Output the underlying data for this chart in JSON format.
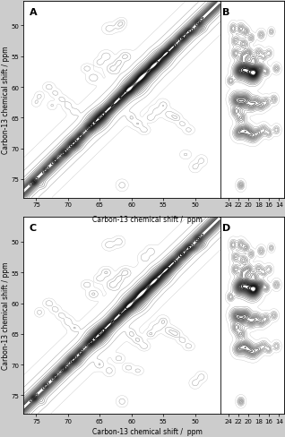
{
  "ylabel": "Carbon-13 chemical shift / ppm",
  "xlabel": "Carbon-13 chemical shift /  ppm",
  "yticks": [
    50,
    55,
    60,
    65,
    70,
    75
  ],
  "xticks_main": [
    75,
    70,
    65,
    60,
    55,
    50
  ],
  "xticks_side": [
    24,
    22,
    20,
    18,
    16,
    14
  ],
  "ylim": [
    78,
    46
  ],
  "xlim_main": [
    77,
    46
  ],
  "xlim_side": [
    25.5,
    13
  ],
  "n_levels": 18,
  "figure_bg": "#d8d8d8",
  "panel_bg": "#ffffff",
  "peaks_A": [
    [
      75.3,
      75.5,
      0.3,
      0.3,
      8.0
    ],
    [
      73.5,
      73.5,
      0.25,
      0.25,
      5.0
    ],
    [
      72.0,
      72.0,
      0.3,
      0.3,
      6.0
    ],
    [
      70.5,
      70.7,
      0.5,
      0.4,
      7.0
    ],
    [
      69.0,
      69.3,
      0.7,
      0.6,
      7.5
    ],
    [
      68.0,
      68.0,
      0.4,
      0.4,
      5.0
    ],
    [
      66.5,
      66.5,
      0.5,
      0.4,
      6.0
    ],
    [
      65.5,
      65.5,
      1.0,
      0.9,
      8.0
    ],
    [
      64.5,
      64.5,
      0.7,
      0.7,
      7.0
    ],
    [
      63.5,
      63.5,
      0.5,
      0.5,
      6.5
    ],
    [
      62.5,
      62.5,
      0.6,
      0.6,
      7.0
    ],
    [
      61.5,
      61.5,
      0.7,
      0.6,
      7.5
    ],
    [
      60.5,
      60.5,
      0.6,
      0.5,
      7.0
    ],
    [
      59.5,
      59.8,
      1.2,
      1.0,
      9.0
    ],
    [
      58.5,
      58.5,
      0.8,
      0.7,
      7.5
    ],
    [
      57.5,
      57.5,
      1.0,
      0.9,
      8.0
    ],
    [
      56.5,
      56.5,
      0.7,
      0.6,
      7.0
    ],
    [
      55.5,
      55.5,
      1.0,
      0.9,
      8.0
    ],
    [
      54.5,
      54.5,
      0.6,
      0.5,
      6.5
    ],
    [
      53.5,
      53.5,
      0.7,
      0.6,
      7.0
    ],
    [
      52.0,
      52.0,
      0.6,
      0.5,
      6.5
    ],
    [
      51.0,
      51.0,
      0.5,
      0.4,
      5.5
    ],
    [
      49.5,
      49.5,
      0.4,
      0.4,
      5.0
    ],
    [
      67.0,
      57.0,
      0.5,
      0.4,
      4.0
    ],
    [
      66.0,
      58.5,
      0.6,
      0.5,
      4.5
    ],
    [
      65.0,
      56.0,
      0.5,
      0.4,
      4.0
    ],
    [
      64.0,
      55.0,
      0.6,
      0.5,
      4.5
    ],
    [
      63.0,
      57.0,
      0.7,
      0.6,
      5.0
    ],
    [
      62.0,
      56.0,
      0.5,
      0.5,
      4.5
    ],
    [
      61.0,
      55.0,
      0.6,
      0.5,
      5.0
    ],
    [
      60.0,
      65.0,
      0.5,
      0.5,
      4.0
    ],
    [
      59.0,
      66.0,
      0.6,
      0.5,
      4.5
    ],
    [
      58.0,
      67.0,
      0.5,
      0.4,
      4.0
    ],
    [
      57.0,
      65.0,
      0.5,
      0.4,
      4.5
    ],
    [
      56.0,
      64.0,
      0.6,
      0.5,
      4.0
    ],
    [
      55.0,
      63.0,
      0.5,
      0.5,
      4.5
    ],
    [
      54.0,
      64.5,
      0.6,
      0.5,
      4.0
    ],
    [
      53.0,
      65.0,
      0.5,
      0.4,
      4.5
    ],
    [
      52.0,
      66.0,
      0.5,
      0.4,
      3.5
    ],
    [
      51.0,
      67.0,
      0.5,
      0.4,
      3.5
    ],
    [
      74.5,
      61.5,
      0.4,
      0.4,
      3.5
    ],
    [
      73.0,
      60.0,
      0.5,
      0.4,
      4.0
    ],
    [
      72.0,
      61.0,
      0.5,
      0.4,
      3.5
    ],
    [
      71.0,
      62.0,
      0.5,
      0.4,
      3.5
    ],
    [
      70.0,
      63.0,
      0.5,
      0.5,
      4.0
    ],
    [
      69.0,
      64.0,
      0.5,
      0.4,
      3.5
    ],
    [
      50.0,
      51.0,
      0.5,
      0.4,
      4.0
    ],
    [
      49.0,
      50.5,
      0.5,
      0.4,
      4.0
    ],
    [
      75.0,
      62.5,
      0.4,
      0.4,
      3.0
    ],
    [
      74.0,
      76.0,
      0.35,
      0.35,
      3.0
    ],
    [
      72.5,
      63.0,
      0.4,
      0.4,
      3.0
    ],
    [
      63.5,
      50.5,
      0.6,
      0.5,
      4.0
    ],
    [
      62.0,
      50.0,
      0.5,
      0.5,
      4.0
    ],
    [
      61.5,
      49.5,
      0.4,
      0.4,
      3.5
    ],
    [
      49.0,
      72.0,
      0.5,
      0.5,
      3.5
    ],
    [
      50.0,
      73.0,
      0.5,
      0.5,
      3.5
    ],
    [
      51.5,
      71.0,
      0.5,
      0.4,
      3.0
    ],
    [
      61.5,
      76.0,
      0.5,
      0.5,
      4.0
    ]
  ],
  "peaks_B": [
    [
      23.0,
      50.5,
      0.4,
      0.5,
      5.0
    ],
    [
      21.5,
      50.5,
      0.5,
      0.5,
      5.5
    ],
    [
      20.5,
      51.0,
      0.4,
      0.4,
      5.0
    ],
    [
      22.5,
      52.5,
      0.5,
      0.5,
      5.0
    ],
    [
      21.0,
      53.0,
      0.6,
      0.5,
      5.5
    ],
    [
      19.5,
      52.0,
      0.4,
      0.4,
      4.5
    ],
    [
      17.5,
      51.5,
      0.4,
      0.4,
      4.5
    ],
    [
      15.5,
      51.0,
      0.3,
      0.3,
      4.0
    ],
    [
      22.5,
      54.5,
      0.5,
      0.5,
      5.5
    ],
    [
      21.0,
      55.0,
      0.6,
      0.6,
      6.0
    ],
    [
      20.0,
      54.5,
      0.5,
      0.5,
      5.5
    ],
    [
      19.0,
      55.5,
      0.5,
      0.5,
      5.0
    ],
    [
      18.0,
      54.5,
      0.5,
      0.5,
      5.0
    ],
    [
      17.0,
      55.0,
      0.4,
      0.4,
      4.5
    ],
    [
      16.0,
      54.5,
      0.4,
      0.4,
      4.0
    ],
    [
      22.0,
      57.5,
      0.7,
      0.8,
      7.5
    ],
    [
      21.0,
      57.0,
      0.8,
      0.9,
      8.0
    ],
    [
      20.0,
      57.5,
      0.9,
      1.0,
      8.5
    ],
    [
      19.0,
      58.0,
      0.8,
      0.9,
      8.0
    ],
    [
      18.5,
      57.5,
      0.7,
      0.8,
      7.5
    ],
    [
      17.5,
      57.0,
      0.5,
      0.5,
      5.5
    ],
    [
      16.5,
      57.5,
      0.4,
      0.4,
      5.0
    ],
    [
      23.5,
      59.0,
      0.4,
      0.4,
      5.0
    ],
    [
      22.5,
      62.0,
      0.7,
      0.7,
      6.5
    ],
    [
      21.5,
      62.5,
      0.8,
      0.8,
      7.0
    ],
    [
      20.5,
      62.0,
      0.7,
      0.7,
      6.5
    ],
    [
      19.5,
      63.0,
      0.6,
      0.6,
      6.0
    ],
    [
      18.5,
      62.5,
      0.6,
      0.6,
      6.0
    ],
    [
      17.5,
      63.0,
      0.5,
      0.5,
      5.5
    ],
    [
      16.5,
      62.5,
      0.5,
      0.5,
      5.0
    ],
    [
      22.5,
      64.0,
      0.5,
      0.5,
      5.5
    ],
    [
      21.5,
      65.0,
      0.6,
      0.6,
      6.0
    ],
    [
      22.0,
      67.5,
      0.6,
      0.6,
      6.0
    ],
    [
      21.0,
      67.0,
      0.7,
      0.7,
      6.5
    ],
    [
      20.0,
      67.5,
      0.7,
      0.7,
      6.5
    ],
    [
      19.0,
      68.0,
      0.6,
      0.6,
      6.0
    ],
    [
      18.0,
      67.5,
      0.5,
      0.5,
      5.5
    ],
    [
      17.0,
      67.0,
      0.5,
      0.5,
      5.0
    ],
    [
      16.0,
      67.5,
      0.4,
      0.4,
      4.5
    ],
    [
      21.5,
      76.0,
      0.4,
      0.4,
      5.5
    ],
    [
      14.5,
      57.0,
      0.4,
      0.4,
      4.5
    ],
    [
      15.0,
      62.0,
      0.4,
      0.4,
      4.5
    ],
    [
      14.5,
      67.0,
      0.4,
      0.4,
      4.0
    ]
  ],
  "peaks_C": [
    [
      75.3,
      75.5,
      0.3,
      0.3,
      8.0
    ],
    [
      73.5,
      73.5,
      0.25,
      0.25,
      5.0
    ],
    [
      72.0,
      72.0,
      0.3,
      0.3,
      6.0
    ],
    [
      70.5,
      70.7,
      0.5,
      0.4,
      7.0
    ],
    [
      69.0,
      69.3,
      0.7,
      0.6,
      7.5
    ],
    [
      68.0,
      68.0,
      0.4,
      0.4,
      5.0
    ],
    [
      66.5,
      66.5,
      0.5,
      0.4,
      6.0
    ],
    [
      65.5,
      65.5,
      1.0,
      0.9,
      8.0
    ],
    [
      64.5,
      64.5,
      0.7,
      0.7,
      7.0
    ],
    [
      63.5,
      63.5,
      0.5,
      0.5,
      6.5
    ],
    [
      62.5,
      62.5,
      0.6,
      0.6,
      7.0
    ],
    [
      61.5,
      61.5,
      0.7,
      0.6,
      7.5
    ],
    [
      60.5,
      60.5,
      0.6,
      0.5,
      7.0
    ],
    [
      59.5,
      59.8,
      1.2,
      1.0,
      9.0
    ],
    [
      58.5,
      58.5,
      0.8,
      0.7,
      7.5
    ],
    [
      57.5,
      57.5,
      1.0,
      0.9,
      8.0
    ],
    [
      56.5,
      56.5,
      0.7,
      0.6,
      7.0
    ],
    [
      55.5,
      55.5,
      1.0,
      0.9,
      8.0
    ],
    [
      54.5,
      54.5,
      0.6,
      0.5,
      6.5
    ],
    [
      53.5,
      53.5,
      0.7,
      0.6,
      7.0
    ],
    [
      52.0,
      52.0,
      0.6,
      0.5,
      6.5
    ],
    [
      51.0,
      51.0,
      0.5,
      0.4,
      5.5
    ],
    [
      49.5,
      49.5,
      0.4,
      0.4,
      5.0
    ],
    [
      67.0,
      57.0,
      0.5,
      0.4,
      4.5
    ],
    [
      66.0,
      58.5,
      0.6,
      0.5,
      5.0
    ],
    [
      65.0,
      56.0,
      0.5,
      0.4,
      4.5
    ],
    [
      64.0,
      55.0,
      0.6,
      0.5,
      5.0
    ],
    [
      63.0,
      57.0,
      0.7,
      0.6,
      5.5
    ],
    [
      62.0,
      56.0,
      0.5,
      0.5,
      5.0
    ],
    [
      61.0,
      55.0,
      0.6,
      0.5,
      5.5
    ],
    [
      60.0,
      65.0,
      0.5,
      0.5,
      4.5
    ],
    [
      59.0,
      66.0,
      0.6,
      0.5,
      5.0
    ],
    [
      58.0,
      67.0,
      0.5,
      0.4,
      4.5
    ],
    [
      57.0,
      65.0,
      0.5,
      0.4,
      5.0
    ],
    [
      56.0,
      64.0,
      0.6,
      0.5,
      4.5
    ],
    [
      55.0,
      63.0,
      0.5,
      0.5,
      5.0
    ],
    [
      54.0,
      64.5,
      0.6,
      0.5,
      4.5
    ],
    [
      53.0,
      65.0,
      0.5,
      0.4,
      5.0
    ],
    [
      52.0,
      66.0,
      0.5,
      0.4,
      4.0
    ],
    [
      51.0,
      67.0,
      0.5,
      0.4,
      4.0
    ],
    [
      74.5,
      61.5,
      0.4,
      0.4,
      4.0
    ],
    [
      73.0,
      60.0,
      0.5,
      0.4,
      4.5
    ],
    [
      72.0,
      61.0,
      0.5,
      0.4,
      4.0
    ],
    [
      71.0,
      62.0,
      0.5,
      0.4,
      4.0
    ],
    [
      70.0,
      63.0,
      0.5,
      0.5,
      4.5
    ],
    [
      69.0,
      64.0,
      0.5,
      0.4,
      4.0
    ],
    [
      50.0,
      51.0,
      0.5,
      0.4,
      4.5
    ],
    [
      49.0,
      50.5,
      0.5,
      0.4,
      4.5
    ],
    [
      74.0,
      76.0,
      0.35,
      0.35,
      3.0
    ],
    [
      63.5,
      50.5,
      0.6,
      0.5,
      4.5
    ],
    [
      62.0,
      50.0,
      0.5,
      0.5,
      4.5
    ],
    [
      49.0,
      72.0,
      0.5,
      0.5,
      4.0
    ],
    [
      50.0,
      73.0,
      0.5,
      0.5,
      4.0
    ],
    [
      61.5,
      76.0,
      0.5,
      0.5,
      4.0
    ],
    [
      65.0,
      70.0,
      0.5,
      0.5,
      4.0
    ],
    [
      63.5,
      71.0,
      0.5,
      0.5,
      4.0
    ],
    [
      62.0,
      69.0,
      0.5,
      0.4,
      4.0
    ],
    [
      60.5,
      70.5,
      0.5,
      0.4,
      4.0
    ],
    [
      59.0,
      71.0,
      0.5,
      0.4,
      3.5
    ],
    [
      58.0,
      52.5,
      0.5,
      0.5,
      4.0
    ],
    [
      57.0,
      51.5,
      0.5,
      0.5,
      3.5
    ]
  ],
  "peaks_D": [
    [
      23.0,
      50.5,
      0.4,
      0.5,
      5.0
    ],
    [
      21.5,
      50.5,
      0.5,
      0.5,
      5.5
    ],
    [
      20.5,
      51.0,
      0.4,
      0.4,
      5.0
    ],
    [
      22.5,
      52.5,
      0.5,
      0.5,
      5.0
    ],
    [
      21.0,
      53.0,
      0.6,
      0.5,
      5.5
    ],
    [
      19.5,
      52.0,
      0.4,
      0.4,
      4.5
    ],
    [
      17.5,
      51.5,
      0.4,
      0.4,
      4.5
    ],
    [
      15.5,
      51.0,
      0.3,
      0.3,
      4.0
    ],
    [
      22.5,
      54.5,
      0.5,
      0.5,
      5.5
    ],
    [
      21.0,
      55.0,
      0.6,
      0.6,
      6.0
    ],
    [
      20.0,
      54.5,
      0.5,
      0.5,
      5.5
    ],
    [
      19.0,
      55.5,
      0.5,
      0.5,
      5.0
    ],
    [
      18.0,
      54.5,
      0.5,
      0.5,
      5.0
    ],
    [
      17.0,
      55.0,
      0.4,
      0.4,
      4.5
    ],
    [
      16.0,
      54.5,
      0.4,
      0.4,
      4.0
    ],
    [
      22.0,
      57.5,
      0.7,
      0.8,
      7.5
    ],
    [
      21.0,
      57.0,
      0.8,
      0.9,
      8.0
    ],
    [
      20.0,
      57.5,
      0.9,
      1.0,
      8.5
    ],
    [
      19.0,
      58.0,
      0.8,
      0.9,
      8.0
    ],
    [
      18.5,
      57.5,
      0.7,
      0.8,
      7.5
    ],
    [
      17.5,
      57.0,
      0.5,
      0.5,
      5.5
    ],
    [
      16.5,
      57.5,
      0.4,
      0.4,
      5.0
    ],
    [
      23.5,
      59.0,
      0.4,
      0.4,
      5.0
    ],
    [
      22.5,
      62.0,
      0.7,
      0.7,
      6.5
    ],
    [
      21.5,
      62.5,
      0.8,
      0.8,
      7.0
    ],
    [
      20.5,
      62.0,
      0.7,
      0.7,
      6.5
    ],
    [
      19.5,
      63.0,
      0.6,
      0.6,
      6.0
    ],
    [
      18.5,
      62.5,
      0.6,
      0.6,
      6.0
    ],
    [
      17.5,
      63.0,
      0.5,
      0.5,
      5.5
    ],
    [
      16.5,
      62.5,
      0.5,
      0.5,
      5.0
    ],
    [
      22.5,
      64.0,
      0.5,
      0.5,
      5.5
    ],
    [
      21.5,
      65.0,
      0.6,
      0.6,
      6.0
    ],
    [
      22.0,
      67.5,
      0.6,
      0.6,
      6.0
    ],
    [
      21.0,
      67.0,
      0.7,
      0.7,
      6.5
    ],
    [
      20.0,
      67.5,
      0.7,
      0.7,
      6.5
    ],
    [
      19.0,
      68.0,
      0.6,
      0.6,
      6.0
    ],
    [
      18.0,
      67.5,
      0.5,
      0.5,
      5.5
    ],
    [
      17.0,
      67.0,
      0.5,
      0.5,
      5.0
    ],
    [
      16.0,
      67.5,
      0.4,
      0.4,
      4.5
    ],
    [
      21.5,
      76.0,
      0.4,
      0.4,
      5.5
    ],
    [
      14.5,
      57.0,
      0.4,
      0.4,
      4.5
    ],
    [
      15.0,
      62.0,
      0.4,
      0.4,
      4.5
    ],
    [
      14.5,
      67.0,
      0.4,
      0.4,
      4.0
    ]
  ]
}
